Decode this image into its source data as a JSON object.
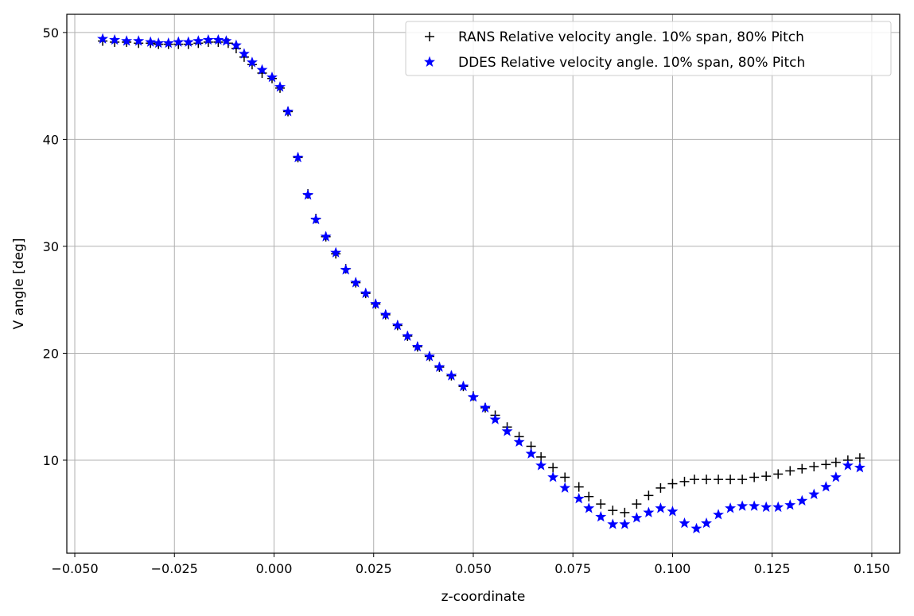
{
  "chart_data": {
    "type": "scatter",
    "xlabel": "z-coordinate",
    "ylabel": "V angle [deg]",
    "xlim": [
      -0.052,
      0.157
    ],
    "ylim": [
      1.3,
      51.7
    ],
    "xticks": [
      -0.05,
      -0.025,
      0.0,
      0.025,
      0.05,
      0.075,
      0.1,
      0.125,
      0.15
    ],
    "xtick_labels": [
      "−0.050",
      "−0.025",
      "0.000",
      "0.025",
      "0.050",
      "0.075",
      "0.100",
      "0.125",
      "0.150"
    ],
    "yticks": [
      10,
      20,
      30,
      40,
      50
    ],
    "ytick_labels": [
      "10",
      "20",
      "30",
      "40",
      "50"
    ],
    "grid": true,
    "legend_position": "top-right",
    "series": [
      {
        "name": "RANS Relative velocity angle. 10% span, 80% Pitch",
        "marker": "plus",
        "color": "#000000",
        "x": [
          -0.043,
          -0.04,
          -0.037,
          -0.034,
          -0.031,
          -0.029,
          -0.0265,
          -0.024,
          -0.0215,
          -0.019,
          -0.0165,
          -0.014,
          -0.0115,
          -0.0095,
          -0.0075,
          -0.0055,
          -0.003,
          -0.0005,
          0.0015,
          0.0035,
          0.006,
          0.0085,
          0.0105,
          0.013,
          0.0155,
          0.018,
          0.0205,
          0.023,
          0.0255,
          0.028,
          0.031,
          0.0335,
          0.036,
          0.039,
          0.0415,
          0.0445,
          0.0475,
          0.05,
          0.053,
          0.0555,
          0.0585,
          0.0615,
          0.0645,
          0.067,
          0.07,
          0.073,
          0.0765,
          0.079,
          0.082,
          0.085,
          0.088,
          0.091,
          0.094,
          0.097,
          0.1,
          0.103,
          0.1055,
          0.1085,
          0.1115,
          0.1145,
          0.1175,
          0.1205,
          0.1235,
          0.1265,
          0.1295,
          0.1325,
          0.1355,
          0.1385,
          0.141,
          0.144,
          0.147
        ],
        "y": [
          49.2,
          49.1,
          49.1,
          49.0,
          49.0,
          48.9,
          48.9,
          48.9,
          48.9,
          49.0,
          49.1,
          49.1,
          49.0,
          48.5,
          47.7,
          47.0,
          46.2,
          45.7,
          44.8,
          42.6,
          38.3,
          34.9,
          32.6,
          30.9,
          29.3,
          27.9,
          26.6,
          25.6,
          24.6,
          23.6,
          22.6,
          21.6,
          20.6,
          19.7,
          18.7,
          17.9,
          16.9,
          16.0,
          14.9,
          14.2,
          13.1,
          12.2,
          11.3,
          10.3,
          9.3,
          8.4,
          7.5,
          6.6,
          5.9,
          5.3,
          5.1,
          5.9,
          6.7,
          7.4,
          7.8,
          8.0,
          8.2,
          8.2,
          8.2,
          8.2,
          8.2,
          8.4,
          8.5,
          8.7,
          9.0,
          9.2,
          9.4,
          9.6,
          9.8,
          10.0,
          10.2
        ]
      },
      {
        "name": "DDES Relative velocity angle. 10% span, 80% Pitch",
        "marker": "star",
        "color": "#0000ff",
        "x": [
          -0.043,
          -0.04,
          -0.037,
          -0.034,
          -0.031,
          -0.029,
          -0.0265,
          -0.024,
          -0.0215,
          -0.019,
          -0.0165,
          -0.014,
          -0.012,
          -0.0095,
          -0.0075,
          -0.0055,
          -0.003,
          -0.0005,
          0.0015,
          0.0035,
          0.006,
          0.0085,
          0.0105,
          0.013,
          0.0155,
          0.018,
          0.0205,
          0.023,
          0.0255,
          0.028,
          0.031,
          0.0335,
          0.036,
          0.039,
          0.0415,
          0.0445,
          0.0475,
          0.05,
          0.053,
          0.0555,
          0.0585,
          0.0615,
          0.0645,
          0.067,
          0.07,
          0.073,
          0.0765,
          0.079,
          0.082,
          0.085,
          0.088,
          0.091,
          0.094,
          0.097,
          0.1,
          0.103,
          0.106,
          0.1085,
          0.1115,
          0.1145,
          0.1175,
          0.1205,
          0.1235,
          0.1265,
          0.1295,
          0.1325,
          0.1355,
          0.1385,
          0.141,
          0.144,
          0.147
        ],
        "y": [
          49.4,
          49.3,
          49.2,
          49.2,
          49.1,
          49.0,
          49.0,
          49.1,
          49.1,
          49.2,
          49.3,
          49.3,
          49.2,
          48.8,
          48.0,
          47.2,
          46.5,
          45.8,
          44.9,
          42.6,
          38.3,
          34.8,
          32.5,
          30.9,
          29.4,
          27.8,
          26.6,
          25.6,
          24.6,
          23.6,
          22.6,
          21.6,
          20.6,
          19.7,
          18.7,
          17.9,
          16.9,
          15.9,
          14.9,
          13.8,
          12.7,
          11.7,
          10.6,
          9.5,
          8.4,
          7.4,
          6.4,
          5.5,
          4.7,
          4.0,
          4.0,
          4.6,
          5.1,
          5.5,
          5.2,
          4.1,
          3.6,
          4.1,
          4.9,
          5.5,
          5.7,
          5.7,
          5.6,
          5.6,
          5.8,
          6.2,
          6.8,
          7.5,
          8.4,
          9.5,
          9.3
        ]
      }
    ]
  }
}
